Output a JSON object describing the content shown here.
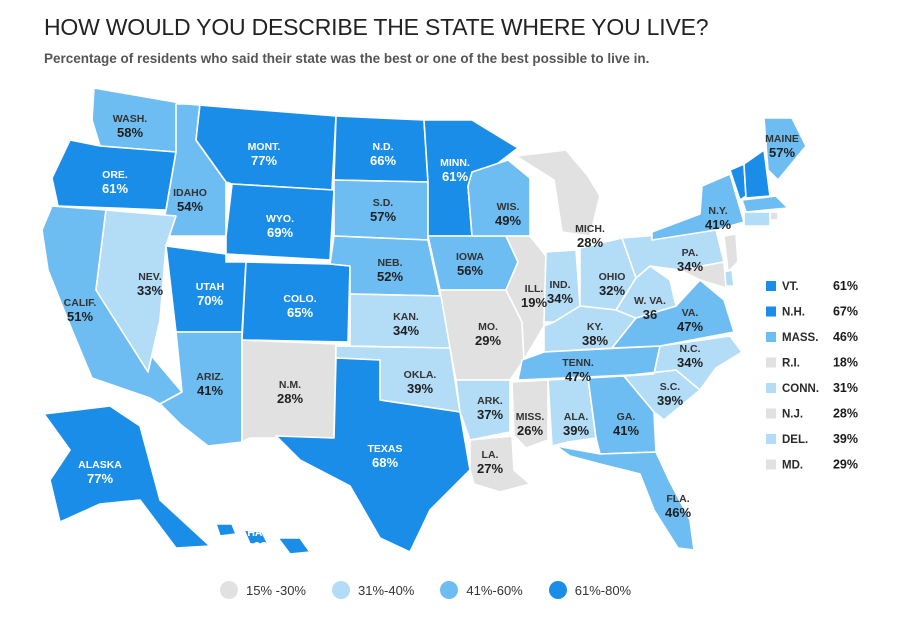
{
  "title": "HOW WOULD YOU DESCRIBE THE STATE WHERE YOU LIVE?",
  "subtitle": "Percentage of residents who said their state was the best or one of the best possible to live in.",
  "legend": [
    {
      "label": "15% -30%",
      "color": "#e1e1e1"
    },
    {
      "label": "31%-40%",
      "color": "#b3dcf7"
    },
    {
      "label": "41%-60%",
      "color": "#6ebdf2"
    },
    {
      "label": "61%-80%",
      "color": "#1a8de8"
    }
  ],
  "states": [
    {
      "abbr": "WASH.",
      "value": "58%",
      "pct": 58
    },
    {
      "abbr": "ORE.",
      "value": "61%",
      "pct": 61
    },
    {
      "abbr": "CALIF.",
      "value": "51%",
      "pct": 51
    },
    {
      "abbr": "IDAHO",
      "value": "54%",
      "pct": 54
    },
    {
      "abbr": "NEV.",
      "value": "33%",
      "pct": 33
    },
    {
      "abbr": "MONT.",
      "value": "77%",
      "pct": 77
    },
    {
      "abbr": "WYO.",
      "value": "69%",
      "pct": 69
    },
    {
      "abbr": "UTAH",
      "value": "70%",
      "pct": 70
    },
    {
      "abbr": "ARIZ.",
      "value": "41%",
      "pct": 41
    },
    {
      "abbr": "COLO.",
      "value": "65%",
      "pct": 65
    },
    {
      "abbr": "N.M.",
      "value": "28%",
      "pct": 28
    },
    {
      "abbr": "N.D.",
      "value": "66%",
      "pct": 66
    },
    {
      "abbr": "S.D.",
      "value": "57%",
      "pct": 57
    },
    {
      "abbr": "NEB.",
      "value": "52%",
      "pct": 52
    },
    {
      "abbr": "KAN.",
      "value": "34%",
      "pct": 34
    },
    {
      "abbr": "OKLA.",
      "value": "39%",
      "pct": 39
    },
    {
      "abbr": "TEXAS",
      "value": "68%",
      "pct": 68
    },
    {
      "abbr": "MINN.",
      "value": "61%",
      "pct": 61
    },
    {
      "abbr": "IOWA",
      "value": "56%",
      "pct": 56
    },
    {
      "abbr": "MO.",
      "value": "29%",
      "pct": 29
    },
    {
      "abbr": "ARK.",
      "value": "37%",
      "pct": 37
    },
    {
      "abbr": "LA.",
      "value": "27%",
      "pct": 27
    },
    {
      "abbr": "WIS.",
      "value": "49%",
      "pct": 49
    },
    {
      "abbr": "ILL.",
      "value": "19%",
      "pct": 19
    },
    {
      "abbr": "MICH.",
      "value": "28%",
      "pct": 28
    },
    {
      "abbr": "IND.",
      "value": "34%",
      "pct": 34
    },
    {
      "abbr": "OHIO",
      "value": "32%",
      "pct": 32
    },
    {
      "abbr": "KY.",
      "value": "38%",
      "pct": 38
    },
    {
      "abbr": "TENN.",
      "value": "47%",
      "pct": 47
    },
    {
      "abbr": "MISS.",
      "value": "26%",
      "pct": 26
    },
    {
      "abbr": "ALA.",
      "value": "39%",
      "pct": 39
    },
    {
      "abbr": "GA.",
      "value": "41%",
      "pct": 41
    },
    {
      "abbr": "FLA.",
      "value": "46%",
      "pct": 46
    },
    {
      "abbr": "S.C.",
      "value": "39%",
      "pct": 39
    },
    {
      "abbr": "N.C.",
      "value": "34%",
      "pct": 34
    },
    {
      "abbr": "VA.",
      "value": "47%",
      "pct": 47
    },
    {
      "abbr": "W. VA.",
      "value": "36",
      "pct": 36
    },
    {
      "abbr": "PA.",
      "value": "34%",
      "pct": 34
    },
    {
      "abbr": "N.Y.",
      "value": "41%",
      "pct": 41
    },
    {
      "abbr": "MAINE",
      "value": "57%",
      "pct": 57
    },
    {
      "abbr": "ALASKA",
      "value": "77%",
      "pct": 77
    },
    {
      "abbr": "HAWAII",
      "value": "68%",
      "pct": 68
    }
  ],
  "small_states": [
    {
      "abbr": "VT.",
      "value": "61%",
      "pct": 61
    },
    {
      "abbr": "N.H.",
      "value": "67%",
      "pct": 67
    },
    {
      "abbr": "MASS.",
      "value": "46%",
      "pct": 46
    },
    {
      "abbr": "R.I.",
      "value": "18%",
      "pct": 18
    },
    {
      "abbr": "CONN.",
      "value": "31%",
      "pct": 31
    },
    {
      "abbr": "N.J.",
      "value": "28%",
      "pct": 28
    },
    {
      "abbr": "DEL.",
      "value": "39%",
      "pct": 39
    },
    {
      "abbr": "MD.",
      "value": "29%",
      "pct": 29
    }
  ]
}
